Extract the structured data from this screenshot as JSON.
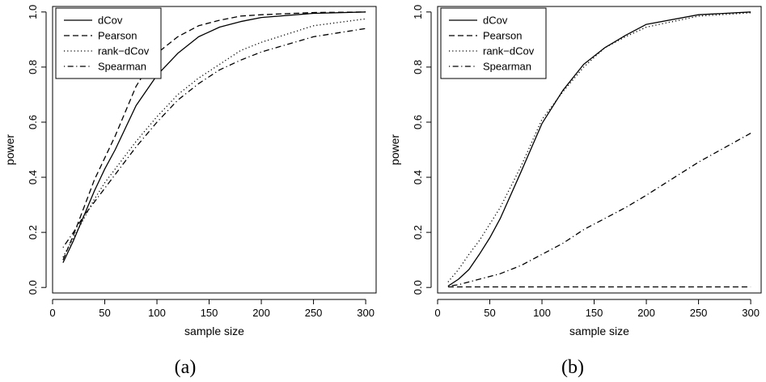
{
  "chart_data": [
    {
      "type": "line",
      "caption": "(a)",
      "xlabel": "sample size",
      "ylabel": "power",
      "xlim": [
        0,
        310
      ],
      "ylim": [
        -0.02,
        1.02
      ],
      "xticks": [
        0,
        50,
        100,
        150,
        200,
        250,
        300
      ],
      "yticks": [
        0.0,
        0.2,
        0.4,
        0.6,
        0.8,
        1.0
      ],
      "xtick_labels": [
        "0",
        "50",
        "100",
        "150",
        "200",
        "250",
        "300"
      ],
      "ytick_labels": [
        "0.0",
        "0.2",
        "0.4",
        "0.6",
        "0.8",
        "1.0"
      ],
      "legend_position": "top-left",
      "x": [
        10,
        20,
        30,
        40,
        50,
        60,
        80,
        100,
        120,
        140,
        160,
        180,
        200,
        250,
        300
      ],
      "series": [
        {
          "name": "dCov",
          "style": "solid",
          "values": [
            0.09,
            0.17,
            0.26,
            0.35,
            0.43,
            0.5,
            0.66,
            0.77,
            0.85,
            0.91,
            0.945,
            0.965,
            0.98,
            0.995,
            1.0
          ]
        },
        {
          "name": "Pearson",
          "style": "dashed",
          "values": [
            0.1,
            0.19,
            0.29,
            0.39,
            0.47,
            0.55,
            0.73,
            0.85,
            0.91,
            0.95,
            0.97,
            0.985,
            0.99,
            0.998,
            1.0
          ]
        },
        {
          "name": "rank−dCov",
          "style": "dotted",
          "values": [
            0.11,
            0.18,
            0.25,
            0.32,
            0.38,
            0.43,
            0.53,
            0.62,
            0.7,
            0.76,
            0.81,
            0.86,
            0.89,
            0.95,
            0.975
          ]
        },
        {
          "name": "Spearman",
          "style": "dotdash",
          "values": [
            0.145,
            0.2,
            0.26,
            0.31,
            0.36,
            0.41,
            0.51,
            0.6,
            0.68,
            0.74,
            0.79,
            0.825,
            0.855,
            0.91,
            0.94
          ]
        }
      ]
    },
    {
      "type": "line",
      "caption": "(b)",
      "xlabel": "sample size",
      "ylabel": "power",
      "xlim": [
        0,
        310
      ],
      "ylim": [
        -0.02,
        1.02
      ],
      "xticks": [
        0,
        50,
        100,
        150,
        200,
        250,
        300
      ],
      "yticks": [
        0.0,
        0.2,
        0.4,
        0.6,
        0.8,
        1.0
      ],
      "xtick_labels": [
        "0",
        "50",
        "100",
        "150",
        "200",
        "250",
        "300"
      ],
      "ytick_labels": [
        "0.0",
        "0.2",
        "0.4",
        "0.6",
        "0.8",
        "1.0"
      ],
      "legend_position": "top-left",
      "x": [
        10,
        20,
        30,
        40,
        50,
        60,
        80,
        100,
        120,
        140,
        160,
        180,
        200,
        250,
        300
      ],
      "series": [
        {
          "name": "dCov",
          "style": "solid",
          "values": [
            0.005,
            0.03,
            0.065,
            0.12,
            0.18,
            0.25,
            0.42,
            0.595,
            0.715,
            0.81,
            0.87,
            0.915,
            0.955,
            0.99,
            1.0
          ]
        },
        {
          "name": "Pearson",
          "style": "dashed",
          "values": [
            0.002,
            0.002,
            0.002,
            0.002,
            0.002,
            0.002,
            0.002,
            0.002,
            0.002,
            0.002,
            0.002,
            0.002,
            0.002,
            0.002,
            0.002
          ]
        },
        {
          "name": "rank−dCov",
          "style": "dotted",
          "values": [
            0.02,
            0.065,
            0.12,
            0.17,
            0.23,
            0.29,
            0.44,
            0.61,
            0.71,
            0.8,
            0.87,
            0.91,
            0.945,
            0.985,
            0.997
          ]
        },
        {
          "name": "Spearman",
          "style": "dotdash",
          "values": [
            0.005,
            0.01,
            0.02,
            0.03,
            0.04,
            0.05,
            0.08,
            0.12,
            0.16,
            0.21,
            0.25,
            0.29,
            0.335,
            0.455,
            0.56
          ]
        }
      ]
    }
  ]
}
